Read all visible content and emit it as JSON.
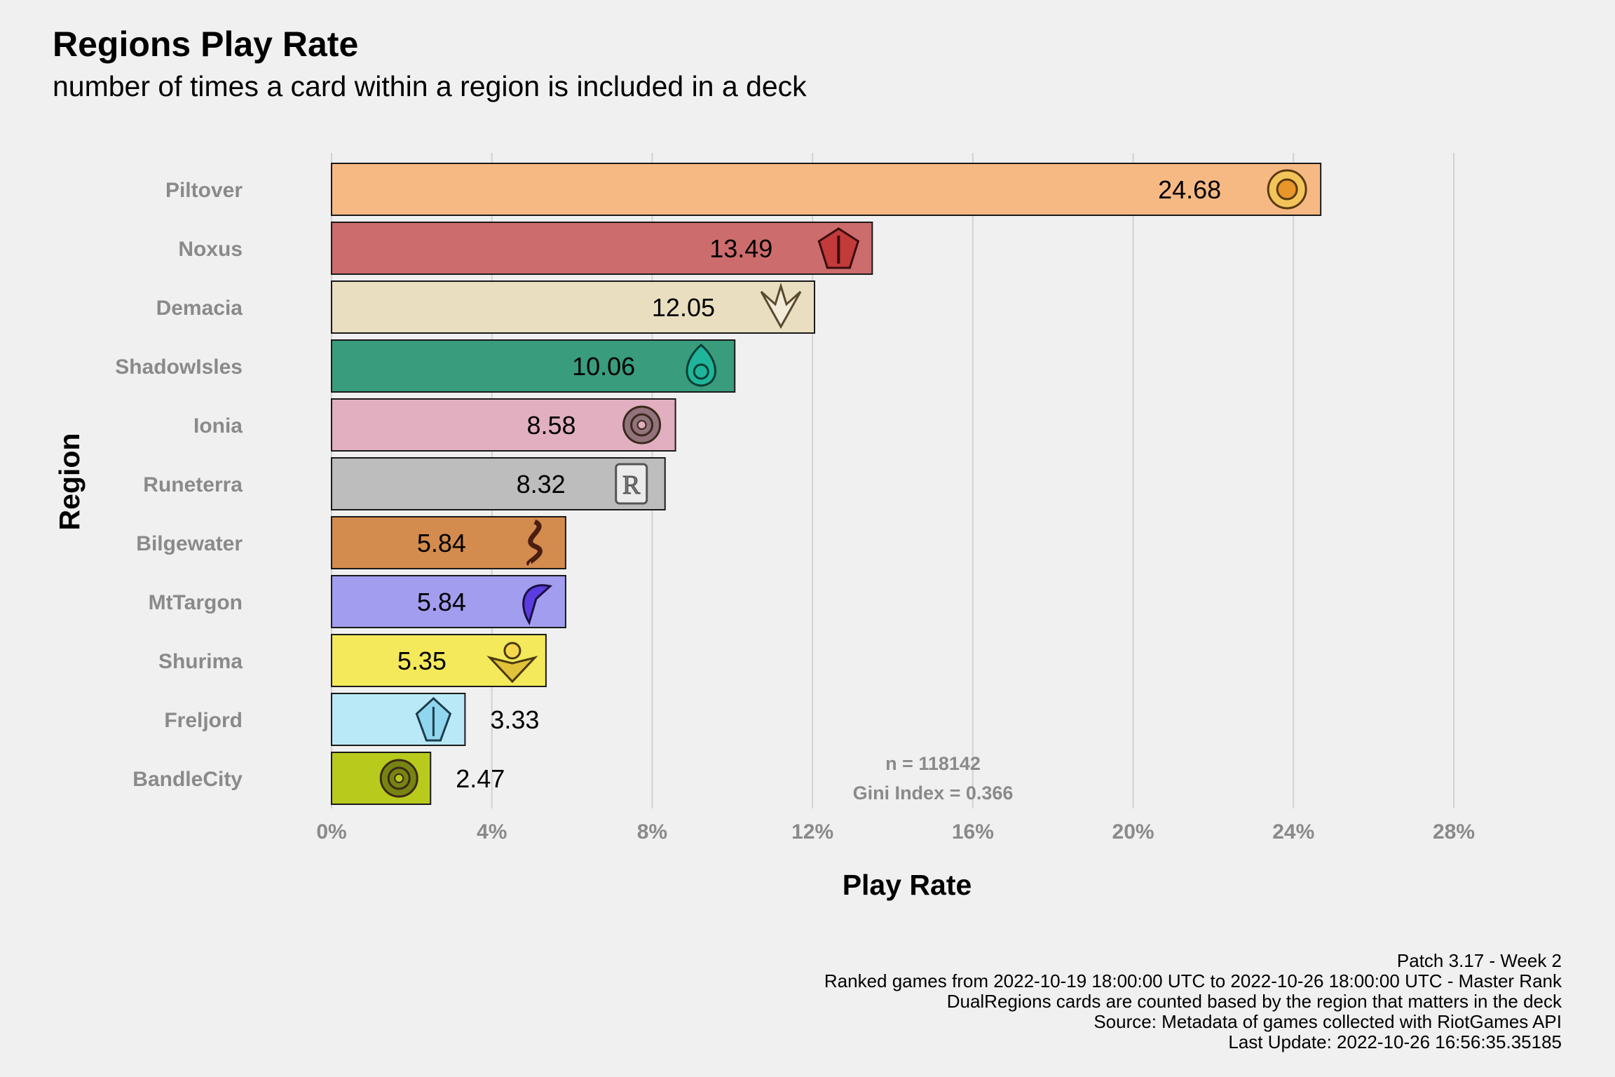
{
  "chart_data": {
    "type": "bar",
    "orientation": "horizontal",
    "title": "Regions Play Rate",
    "subtitle": "number of times a card within a region is included in a deck",
    "xlabel": "Play Rate",
    "ylabel": "Region",
    "xlim": [
      0,
      28
    ],
    "x_ticks": [
      0,
      4,
      8,
      12,
      16,
      20,
      24,
      28
    ],
    "x_tick_labels": [
      "0%",
      "4%",
      "8%",
      "12%",
      "16%",
      "20%",
      "24%",
      "28%"
    ],
    "grid": "vertical major gridlines",
    "legend": "none",
    "categories": [
      "Piltover",
      "Noxus",
      "Demacia",
      "ShadowIsles",
      "Ionia",
      "Runeterra",
      "Bilgewater",
      "MtTargon",
      "Shurima",
      "Freljord",
      "BandleCity"
    ],
    "values": [
      24.68,
      13.49,
      12.05,
      10.06,
      8.58,
      8.32,
      5.84,
      5.84,
      5.35,
      3.33,
      2.47
    ],
    "value_labels": [
      "24.68",
      "13.49",
      "12.05",
      "10.06",
      "8.58",
      "8.32",
      "5.84",
      "5.84",
      "5.35",
      "3.33",
      "2.47"
    ],
    "colors": [
      "#f7b984",
      "#cd6c6c",
      "#e9dfc0",
      "#389c7d",
      "#e1afc0",
      "#bdbdbd",
      "#d38b4e",
      "#a29def",
      "#f3e95a",
      "#b9e9f7",
      "#b8cb1c"
    ],
    "icons": [
      "piltover-icon",
      "noxus-icon",
      "demacia-icon",
      "shadow-isles-icon",
      "ionia-icon",
      "runeterra-icon",
      "bilgewater-icon",
      "mt-targon-icon",
      "shurima-icon",
      "freljord-icon",
      "bandle-city-icon"
    ],
    "annotations": [
      "n = 118142",
      "Gini Index = 0.366"
    ]
  },
  "caption": [
    "Patch 3.17 - Week 2",
    "Ranked games from 2022-10-19 18:00:00 UTC to 2022-10-26 18:00:00 UTC - Master Rank",
    "DualRegions cards are counted based by the region that matters in the deck",
    "Source: Metadata of games collected with RiotGames API",
    "Last Update: 2022-10-26 16:56:35.35185"
  ]
}
